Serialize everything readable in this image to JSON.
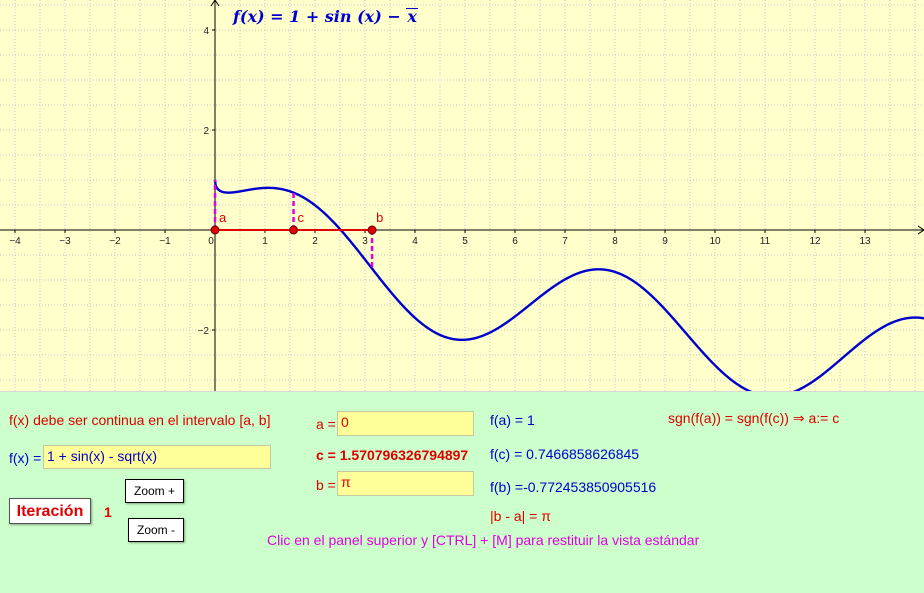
{
  "graph": {
    "title": "f(x) = 1 + sin (x) − √x",
    "title_parts": {
      "lhs": "f(x)",
      "middle": " = 1 + sin (x) − ",
      "radicand": "x"
    },
    "x_ticks": [
      "−4",
      "−3",
      "−2",
      "−1",
      "0",
      "1",
      "2",
      "3",
      "4",
      "5",
      "6",
      "7",
      "8",
      "9",
      "10",
      "11",
      "12",
      "13"
    ],
    "y_ticks": [
      "4",
      "2",
      "−2"
    ],
    "points": {
      "a": "a",
      "b": "b",
      "c": "c"
    },
    "colors": {
      "curve": "#0000cc",
      "segment": "#e00000",
      "dashes": "#e000e0",
      "background": "#ffffcc"
    }
  },
  "chart_data": {
    "type": "line",
    "title": "f(x) = 1 + sin (x) − √x",
    "function": "1 + sin(x) - sqrt(x)",
    "xlim": [
      -4.2,
      14.2
    ],
    "ylim": [
      -3.2,
      4.5
    ],
    "grid": true,
    "series": [
      {
        "samples": {
          "x": [
            0,
            0.5,
            1,
            1.5707963,
            2,
            3,
            3.1415927,
            4,
            5,
            7.6,
            10,
            11.5,
            14
          ],
          "y": [
            1,
            0.772,
            0.841,
            0.747,
            0.495,
            -0.591,
            -0.772,
            -1.757,
            -2.195,
            -0.787,
            -2.706,
            -3.26,
            -1.751
          ]
        }
      }
    ],
    "points": [
      {
        "label": "a",
        "x": 0,
        "y": 0,
        "fx": 1
      },
      {
        "label": "c",
        "x": 1.570796326794897,
        "y": 0,
        "fx": 0.7466858626845
      },
      {
        "label": "b",
        "x": 3.141592653589793,
        "y": 0,
        "fx": -0.772453850905516
      }
    ]
  },
  "panel": {
    "continuity_note": "f(x) debe ser continua en el intervalo [a, b]",
    "fx_label": "f(x) =",
    "fx_value": "1 + sin(x) - sqrt(x)",
    "a_label": "a =",
    "a_value": "0",
    "b_label": "b =",
    "b_value": "π",
    "c_text": "c = 1.570796326794897",
    "fa_text": "f(a) = 1",
    "fc_text": "f(c) = 0.7466858626845",
    "fb_text": "f(b) =-0.772453850905516",
    "ba_text": "|b - a| = π",
    "sign_rule": "sgn(f(a)) = sgn(f(c))  ⇒  a:= c",
    "iter_button": "Iteración",
    "iter_count": "1",
    "zoom_in": "Zoom +",
    "zoom_out": "Zoom -",
    "hint": "Clic en el panel superior y [CTRL] + [M] para restituir la vista estándar"
  }
}
